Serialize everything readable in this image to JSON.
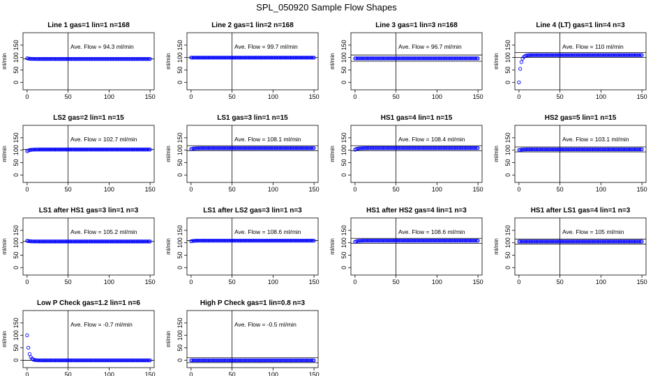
{
  "figure": {
    "title": "SPL_050920  Sample Flow Shapes"
  },
  "chart_data": [
    {
      "type": "scatter",
      "title": "Line 1 gas=1 lin=1 n=168",
      "ylabel": "ml/min",
      "annotation": "Ave. Flow =  94.3  ml/min",
      "xticks": [
        0,
        50,
        100,
        150
      ],
      "yticks": [
        0,
        50,
        100,
        150
      ],
      "xlim": [
        -5,
        155
      ],
      "ylim": [
        -30,
        200
      ],
      "hlines": [
        94.3
      ],
      "vline": 50,
      "color": "#0000ff",
      "series": [
        {
          "shape": "flat",
          "level": 94.3,
          "start": 97,
          "x": [
            0,
            150
          ]
        }
      ]
    },
    {
      "type": "scatter",
      "title": "Line 2 gas=1 lin=2 n=168",
      "ylabel": "ml/min",
      "annotation": "Ave. Flow =  99.7  ml/min",
      "xticks": [
        0,
        50,
        100,
        150
      ],
      "yticks": [
        0,
        50,
        100,
        150
      ],
      "xlim": [
        -5,
        155
      ],
      "ylim": [
        -30,
        200
      ],
      "hlines": [
        99.7
      ],
      "vline": 50,
      "color": "#0000ff",
      "series": [
        {
          "shape": "flat",
          "level": 99.7,
          "start": 99.7,
          "x": [
            0,
            150
          ]
        }
      ]
    },
    {
      "type": "scatter",
      "title": "Line 3 gas=1 lin=3 n=168",
      "ylabel": "ml/min",
      "annotation": "Ave. Flow =  96.7  ml/min",
      "xticks": [
        0,
        50,
        100,
        150
      ],
      "yticks": [
        0,
        50,
        100,
        150
      ],
      "xlim": [
        -5,
        155
      ],
      "ylim": [
        -30,
        200
      ],
      "hlines": [
        110,
        85
      ],
      "vline": 50,
      "color": "#0000ff",
      "series": [
        {
          "shape": "flat",
          "level": 96.7,
          "start": 96.7,
          "x": [
            0,
            150
          ]
        }
      ]
    },
    {
      "type": "scatter",
      "title": "Line 4 (LT) gas=1 lin=4 n=3",
      "ylabel": "ml/min",
      "annotation": "Ave. Flow =  110  ml/min",
      "xticks": [
        0,
        50,
        100,
        150
      ],
      "yticks": [
        0,
        50,
        100,
        150
      ],
      "xlim": [
        -5,
        155
      ],
      "ylim": [
        -30,
        200
      ],
      "hlines": [
        120,
        100
      ],
      "vline": 50,
      "color": "#0000ff",
      "series": [
        {
          "shape": "rise",
          "level": 110,
          "start": 0,
          "x": [
            0,
            150
          ]
        }
      ]
    },
    {
      "type": "scatter",
      "title": "LS2 gas=2 lin=1 n=15",
      "ylabel": "ml/min",
      "annotation": "Ave. Flow =  102.7  ml/min",
      "xticks": [
        0,
        50,
        100,
        150
      ],
      "yticks": [
        0,
        50,
        100,
        150
      ],
      "xlim": [
        -5,
        155
      ],
      "ylim": [
        -30,
        200
      ],
      "hlines": [
        102.7
      ],
      "vline": 50,
      "color": "#0000ff",
      "series": [
        {
          "shape": "flat",
          "level": 102.7,
          "start": 96,
          "x": [
            0,
            150
          ]
        }
      ]
    },
    {
      "type": "scatter",
      "title": "LS1 gas=3 lin=1 n=15",
      "ylabel": "ml/min",
      "annotation": "Ave. Flow =  108.1  ml/min",
      "xticks": [
        0,
        50,
        100,
        150
      ],
      "yticks": [
        0,
        50,
        100,
        150
      ],
      "xlim": [
        -5,
        155
      ],
      "ylim": [
        -30,
        200
      ],
      "hlines": [
        118,
        98
      ],
      "vline": 50,
      "color": "#0000ff",
      "series": [
        {
          "shape": "flat",
          "level": 108.1,
          "start": 104,
          "x": [
            0,
            150
          ]
        }
      ]
    },
    {
      "type": "scatter",
      "title": "HS1 gas=4 lin=1 n=15",
      "ylabel": "ml/min",
      "annotation": "Ave. Flow =  108.4  ml/min",
      "xticks": [
        0,
        50,
        100,
        150
      ],
      "yticks": [
        0,
        50,
        100,
        150
      ],
      "xlim": [
        -5,
        155
      ],
      "ylim": [
        -30,
        200
      ],
      "hlines": [
        118,
        98
      ],
      "vline": 50,
      "color": "#0000ff",
      "series": [
        {
          "shape": "flat",
          "level": 108.4,
          "start": 102,
          "x": [
            0,
            150
          ]
        }
      ]
    },
    {
      "type": "scatter",
      "title": "HS2 gas=5 lin=1 n=15",
      "ylabel": "ml/min",
      "annotation": "Ave. Flow =  103.1  ml/min",
      "xticks": [
        0,
        50,
        100,
        150
      ],
      "yticks": [
        0,
        50,
        100,
        150
      ],
      "xlim": [
        -5,
        155
      ],
      "ylim": [
        -30,
        200
      ],
      "hlines": [
        113,
        93
      ],
      "vline": 50,
      "color": "#0000ff",
      "series": [
        {
          "shape": "flat",
          "level": 103.1,
          "start": 100,
          "x": [
            0,
            150
          ]
        }
      ]
    },
    {
      "type": "scatter",
      "title": "LS1 after HS1 gas=3 lin=1 n=3",
      "ylabel": "ml/min",
      "annotation": "Ave. Flow =  105.2  ml/min",
      "xticks": [
        0,
        50,
        100,
        150
      ],
      "yticks": [
        0,
        50,
        100,
        150
      ],
      "xlim": [
        -5,
        155
      ],
      "ylim": [
        -30,
        200
      ],
      "hlines": [
        105.2
      ],
      "vline": 50,
      "color": "#0000ff",
      "series": [
        {
          "shape": "flat",
          "level": 105.2,
          "start": 108,
          "x": [
            0,
            150
          ]
        }
      ]
    },
    {
      "type": "scatter",
      "title": "LS1 after LS2 gas=3 lin=1 n=3",
      "ylabel": "ml/min",
      "annotation": "Ave. Flow =  108.6  ml/min",
      "xticks": [
        0,
        50,
        100,
        150
      ],
      "yticks": [
        0,
        50,
        100,
        150
      ],
      "xlim": [
        -5,
        155
      ],
      "ylim": [
        -30,
        200
      ],
      "hlines": [
        108.6
      ],
      "vline": 50,
      "color": "#0000ff",
      "series": [
        {
          "shape": "flat",
          "level": 108.6,
          "start": 106,
          "x": [
            0,
            150
          ]
        }
      ]
    },
    {
      "type": "scatter",
      "title": "HS1 after HS2 gas=4 lin=1 n=3",
      "ylabel": "ml/min",
      "annotation": "Ave. Flow =  108.6  ml/min",
      "xticks": [
        0,
        50,
        100,
        150
      ],
      "yticks": [
        0,
        50,
        100,
        150
      ],
      "xlim": [
        -5,
        155
      ],
      "ylim": [
        -30,
        200
      ],
      "hlines": [
        118,
        98
      ],
      "vline": 50,
      "color": "#0000ff",
      "series": [
        {
          "shape": "flat",
          "level": 108.6,
          "start": 104,
          "x": [
            0,
            150
          ]
        }
      ]
    },
    {
      "type": "scatter",
      "title": "HS1 after LS1 gas=4 lin=1 n=3",
      "ylabel": "ml/min",
      "annotation": "Ave. Flow =  105  ml/min",
      "xticks": [
        0,
        50,
        100,
        150
      ],
      "yticks": [
        0,
        50,
        100,
        150
      ],
      "xlim": [
        -5,
        155
      ],
      "ylim": [
        -30,
        200
      ],
      "hlines": [
        115,
        95
      ],
      "vline": 50,
      "color": "#0000ff",
      "series": [
        {
          "shape": "flat",
          "level": 105,
          "start": 105,
          "x": [
            0,
            150
          ]
        }
      ]
    },
    {
      "type": "scatter",
      "title": "Low P Check gas=1.2 lin=1 n=6",
      "ylabel": "ml/min",
      "annotation": "Ave. Flow =  -0.7  ml/min",
      "xticks": [
        0,
        50,
        100,
        150
      ],
      "yticks": [
        0,
        50,
        100,
        150
      ],
      "xlim": [
        -5,
        155
      ],
      "ylim": [
        -30,
        200
      ],
      "hlines": [
        -0.7
      ],
      "vline": 50,
      "color": "#0000ff",
      "series": [
        {
          "shape": "decay",
          "level": -0.7,
          "start": 100,
          "x": [
            0,
            150
          ]
        }
      ]
    },
    {
      "type": "scatter",
      "title": "High P Check gas=1 lin=0.8 n=3",
      "ylabel": "ml/min",
      "annotation": "Ave. Flow =  -0.5  ml/min",
      "xticks": [
        0,
        50,
        100,
        150
      ],
      "yticks": [
        0,
        50,
        100,
        150
      ],
      "xlim": [
        -5,
        155
      ],
      "ylim": [
        -30,
        200
      ],
      "hlines": [
        10,
        -10
      ],
      "vline": 50,
      "color": "#0000ff",
      "series": [
        {
          "shape": "flat",
          "level": -0.5,
          "start": -0.5,
          "x": [
            0,
            150
          ]
        }
      ]
    }
  ]
}
